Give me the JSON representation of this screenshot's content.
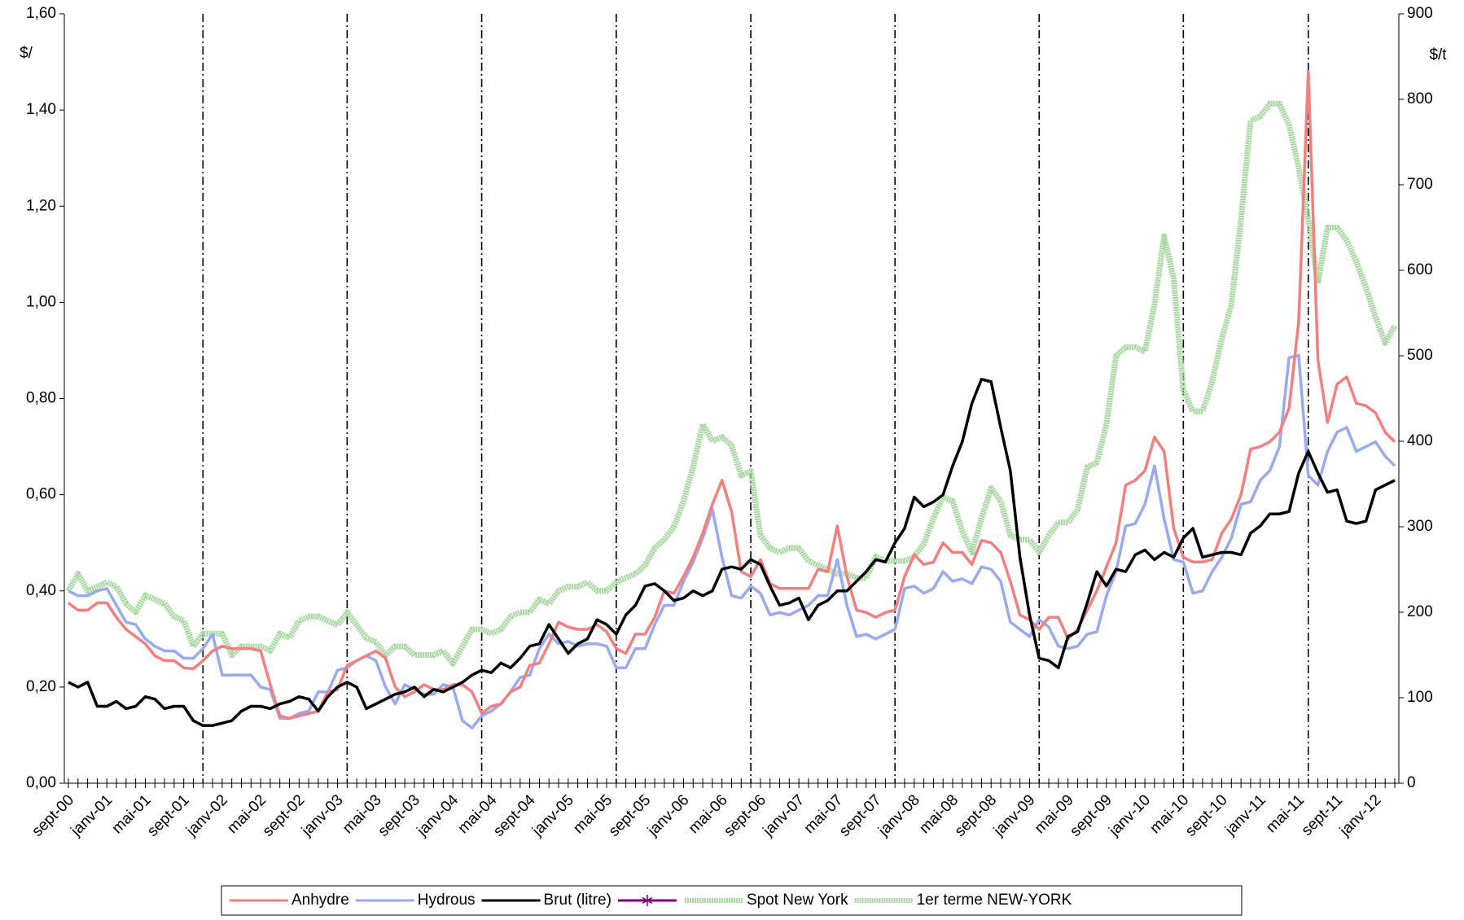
{
  "chart_data": {
    "type": "line",
    "y_label": "$/",
    "y2_label": "$/t",
    "categories": [
      "sept-00",
      null,
      null,
      null,
      "janv-01",
      null,
      null,
      null,
      "mai-01",
      null,
      null,
      null,
      "sept-01",
      null,
      null,
      null,
      "janv-02",
      null,
      null,
      null,
      "mai-02",
      null,
      null,
      null,
      "sept-02",
      null,
      null,
      null,
      "janv-03",
      null,
      null,
      null,
      "mai-03",
      null,
      null,
      null,
      "sept-03",
      null,
      null,
      null,
      "janv-04",
      null,
      null,
      null,
      "mai-04",
      null,
      null,
      null,
      "sept-04",
      null,
      null,
      null,
      "janv-05",
      null,
      null,
      null,
      "mai-05",
      null,
      null,
      null,
      "sept-05",
      null,
      null,
      null,
      "janv-06",
      null,
      null,
      null,
      "mai-06",
      null,
      null,
      null,
      "sept-06",
      null,
      null,
      null,
      "janv-07",
      null,
      null,
      null,
      "mai-07",
      null,
      null,
      null,
      "sept-07",
      null,
      null,
      null,
      "janv-08",
      null,
      null,
      null,
      "mai-08",
      null,
      null,
      null,
      "sept-08",
      null,
      null,
      null,
      "janv-09",
      null,
      null,
      null,
      "mai-09",
      null,
      null,
      null,
      "sept-09",
      null,
      null,
      null,
      "janv-10",
      null,
      null,
      null,
      "mai-10",
      null,
      null,
      null,
      "sept-10",
      null,
      null,
      null,
      "janv-11",
      null,
      null,
      null,
      "mai-11",
      null,
      null,
      null,
      "sept-11",
      null,
      null,
      null,
      "janv-12",
      null,
      null
    ],
    "series": [
      {
        "name": "Anhydre",
        "color": "#f47f7f",
        "axis": "y",
        "values": [
          0.375,
          0.36,
          0.36,
          0.375,
          0.375,
          0.345,
          0.32,
          0.305,
          0.29,
          0.265,
          0.255,
          0.255,
          0.24,
          0.238,
          0.255,
          0.275,
          0.285,
          0.28,
          0.28,
          0.28,
          0.275,
          0.205,
          0.14,
          0.135,
          0.14,
          0.145,
          0.15,
          0.19,
          0.195,
          0.245,
          0.255,
          0.265,
          0.275,
          0.26,
          0.2,
          0.18,
          0.19,
          0.205,
          0.195,
          0.195,
          0.205,
          0.205,
          0.19,
          0.145,
          0.16,
          0.165,
          0.19,
          0.2,
          0.245,
          0.25,
          0.29,
          0.335,
          0.325,
          0.32,
          0.32,
          0.33,
          0.315,
          0.28,
          0.27,
          0.31,
          0.31,
          0.345,
          0.4,
          0.395,
          0.43,
          0.47,
          0.52,
          0.58,
          0.63,
          0.565,
          0.44,
          0.43,
          0.465,
          0.415,
          0.405,
          0.405,
          0.405,
          0.405,
          0.445,
          0.44,
          0.535,
          0.43,
          0.36,
          0.355,
          0.345,
          0.355,
          0.36,
          0.43,
          0.475,
          0.455,
          0.46,
          0.5,
          0.48,
          0.48,
          0.455,
          0.505,
          0.5,
          0.48,
          0.42,
          0.35,
          0.34,
          0.32,
          0.345,
          0.345,
          0.3,
          0.32,
          0.36,
          0.4,
          0.45,
          0.5,
          0.62,
          0.63,
          0.65,
          0.72,
          0.69,
          0.53,
          0.47,
          0.46,
          0.46,
          0.465,
          0.52,
          0.55,
          0.6,
          0.695,
          0.7,
          0.71,
          0.73,
          0.78,
          0.96,
          1.48,
          0.88,
          0.75,
          0.83,
          0.845,
          0.79,
          0.785,
          0.77,
          0.73,
          0.71
        ]
      },
      {
        "name": "Hydrous",
        "color": "#99aaf0",
        "axis": "y",
        "values": [
          0.4,
          0.39,
          0.39,
          0.4,
          0.405,
          0.37,
          0.335,
          0.33,
          0.3,
          0.285,
          0.275,
          0.275,
          0.26,
          0.26,
          0.28,
          0.31,
          0.225,
          0.225,
          0.225,
          0.225,
          0.2,
          0.195,
          0.135,
          0.135,
          0.145,
          0.15,
          0.19,
          0.19,
          0.235,
          0.24,
          0.255,
          0.265,
          0.255,
          0.2,
          0.165,
          0.205,
          0.195,
          0.185,
          0.185,
          0.205,
          0.2,
          0.13,
          0.115,
          0.14,
          0.15,
          0.165,
          0.19,
          0.22,
          0.225,
          0.28,
          0.31,
          0.29,
          0.295,
          0.285,
          0.29,
          0.29,
          0.285,
          0.24,
          0.24,
          0.28,
          0.28,
          0.33,
          0.37,
          0.37,
          0.42,
          0.46,
          0.51,
          0.57,
          0.47,
          0.39,
          0.385,
          0.41,
          0.395,
          0.35,
          0.355,
          0.35,
          0.36,
          0.37,
          0.39,
          0.39,
          0.465,
          0.37,
          0.305,
          0.31,
          0.3,
          0.31,
          0.32,
          0.405,
          0.41,
          0.395,
          0.405,
          0.44,
          0.42,
          0.425,
          0.415,
          0.45,
          0.445,
          0.42,
          0.335,
          0.32,
          0.305,
          0.34,
          0.325,
          0.285,
          0.28,
          0.285,
          0.31,
          0.315,
          0.39,
          0.44,
          0.535,
          0.54,
          0.58,
          0.66,
          0.55,
          0.465,
          0.46,
          0.395,
          0.4,
          0.44,
          0.47,
          0.51,
          0.58,
          0.585,
          0.63,
          0.65,
          0.7,
          0.885,
          0.89,
          0.64,
          0.62,
          0.69,
          0.73,
          0.74,
          0.69,
          0.7,
          0.71,
          0.68,
          0.66
        ]
      },
      {
        "name": "Brut (litre)",
        "color": "#000000",
        "axis": "y",
        "values": [
          0.21,
          0.2,
          0.21,
          0.16,
          0.16,
          0.17,
          0.155,
          0.16,
          0.18,
          0.175,
          0.155,
          0.16,
          0.16,
          0.13,
          0.12,
          0.12,
          0.125,
          0.13,
          0.15,
          0.16,
          0.16,
          0.155,
          0.165,
          0.17,
          0.18,
          0.175,
          0.15,
          0.18,
          0.2,
          0.21,
          0.2,
          0.155,
          0.165,
          0.175,
          0.185,
          0.19,
          0.2,
          0.18,
          0.195,
          0.19,
          0.2,
          0.21,
          0.225,
          0.235,
          0.23,
          0.25,
          0.24,
          0.26,
          0.285,
          0.29,
          0.33,
          0.3,
          0.27,
          0.29,
          0.3,
          0.34,
          0.33,
          0.31,
          0.35,
          0.37,
          0.41,
          0.415,
          0.4,
          0.38,
          0.385,
          0.4,
          0.39,
          0.4,
          0.445,
          0.45,
          0.445,
          0.465,
          0.455,
          0.41,
          0.37,
          0.375,
          0.385,
          0.34,
          0.37,
          0.38,
          0.4,
          0.4,
          0.42,
          0.44,
          0.465,
          0.46,
          0.5,
          0.53,
          0.595,
          0.575,
          0.585,
          0.6,
          0.66,
          0.71,
          0.79,
          0.84,
          0.835,
          0.74,
          0.65,
          0.47,
          0.35,
          0.26,
          0.255,
          0.24,
          0.305,
          0.315,
          0.375,
          0.44,
          0.41,
          0.445,
          0.44,
          0.475,
          0.485,
          0.465,
          0.48,
          0.47,
          0.51,
          0.53,
          0.47,
          0.475,
          0.48,
          0.48,
          0.475,
          0.52,
          0.535,
          0.56,
          0.56,
          0.565,
          0.645,
          0.69,
          0.645,
          0.605,
          0.61,
          0.545,
          0.54,
          0.545,
          0.61,
          0.62,
          0.63
        ]
      },
      {
        "name": "",
        "color": "#800080",
        "axis": "y",
        "marker": "star",
        "values": [
          null,
          null,
          null,
          null,
          null,
          null,
          null,
          null,
          null,
          null,
          null,
          null,
          null,
          null,
          null,
          null,
          null,
          null,
          null,
          null,
          null,
          null,
          null,
          null,
          null,
          null,
          null,
          null,
          null,
          null,
          null,
          null,
          null,
          null,
          null,
          null,
          null,
          null,
          null,
          null,
          null,
          null,
          null,
          null,
          null,
          null,
          null,
          null,
          null,
          null,
          null,
          null,
          null,
          null,
          null,
          null,
          null,
          null,
          null,
          null,
          null,
          null,
          null,
          null,
          null,
          null,
          null,
          null,
          null,
          null,
          null,
          null,
          null,
          null,
          null,
          null,
          null,
          null,
          null,
          null,
          null,
          null,
          null,
          null,
          null,
          null,
          null,
          null,
          null,
          null,
          null,
          null,
          null,
          null,
          null,
          null,
          null,
          null,
          null,
          null,
          null,
          null,
          null,
          null,
          null,
          null,
          null,
          null,
          null,
          null,
          null,
          null,
          null,
          null,
          null,
          null,
          null,
          null,
          null,
          null,
          null,
          null,
          null,
          null,
          null,
          null,
          null,
          null,
          null,
          null,
          null,
          null,
          null,
          null,
          null,
          null,
          null,
          null,
          null
        ]
      },
      {
        "name": "Spot New York",
        "color": "#a9d8a2",
        "axis": "y2",
        "values": [
          225,
          245,
          225,
          230,
          235,
          230,
          210,
          200,
          220,
          215,
          210,
          195,
          190,
          160,
          175,
          175,
          175,
          150,
          160,
          160,
          160,
          155,
          175,
          170,
          190,
          195,
          195,
          190,
          185,
          200,
          185,
          170,
          165,
          150,
          160,
          160,
          150,
          150,
          150,
          155,
          140,
          160,
          180,
          180,
          175,
          180,
          195,
          200,
          200,
          215,
          210,
          225,
          230,
          230,
          235,
          225,
          225,
          235,
          240,
          245,
          255,
          275,
          285,
          300,
          330,
          370,
          420,
          400,
          405,
          395,
          360,
          365,
          290,
          275,
          270,
          275,
          275,
          260,
          255,
          250,
          245,
          245,
          240,
          240,
          265,
          260,
          260,
          260,
          265,
          280,
          310,
          335,
          330,
          295,
          270,
          310,
          345,
          330,
          290,
          285,
          285,
          270,
          290,
          305,
          305,
          320,
          370,
          375,
          420,
          500,
          510,
          510,
          505,
          560,
          640,
          590,
          460,
          435,
          435,
          470,
          520,
          560,
          660,
          775,
          780,
          795,
          795,
          770,
          720,
          660,
          585,
          650,
          650,
          635,
          610,
          580,
          545,
          515,
          535
        ]
      },
      {
        "name": "1er terme NEW-YORK",
        "color": "#a9d8a2",
        "axis": "y2",
        "values": [
          225,
          245,
          225,
          230,
          235,
          230,
          210,
          200,
          220,
          215,
          210,
          195,
          190,
          160,
          175,
          175,
          175,
          150,
          160,
          160,
          160,
          155,
          175,
          170,
          190,
          195,
          195,
          190,
          185,
          200,
          185,
          170,
          165,
          150,
          160,
          160,
          150,
          150,
          150,
          155,
          140,
          160,
          180,
          180,
          175,
          180,
          195,
          200,
          200,
          215,
          210,
          225,
          230,
          230,
          235,
          225,
          225,
          235,
          240,
          245,
          255,
          275,
          285,
          300,
          330,
          370,
          420,
          400,
          405,
          395,
          360,
          365,
          290,
          275,
          270,
          275,
          275,
          260,
          255,
          250,
          245,
          245,
          240,
          240,
          265,
          260,
          260,
          260,
          265,
          280,
          310,
          335,
          330,
          295,
          270,
          310,
          345,
          330,
          290,
          285,
          285,
          270,
          290,
          305,
          305,
          320,
          370,
          375,
          420,
          500,
          510,
          510,
          505,
          560,
          640,
          590,
          460,
          435,
          435,
          470,
          520,
          560,
          660,
          775,
          780,
          795,
          795,
          770,
          720,
          660,
          585,
          650,
          650,
          635,
          610,
          580,
          545,
          515,
          535
        ]
      }
    ],
    "ylim": [
      0,
      1.6
    ],
    "yticks": [
      {
        "value": 0,
        "label": "0,00"
      },
      {
        "value": 0.2,
        "label": "0,20"
      },
      {
        "value": 0.4,
        "label": "0,40"
      },
      {
        "value": 0.6,
        "label": "0,60"
      },
      {
        "value": 0.8,
        "label": "0,80"
      },
      {
        "value": 1,
        "label": "1,00"
      },
      {
        "value": 1.2,
        "label": "1,20"
      },
      {
        "value": 1.4,
        "label": "1,40"
      },
      {
        "value": 1.6,
        "label": "1,60"
      }
    ],
    "y2lim": [
      0,
      900
    ],
    "y2ticks": [
      0,
      100,
      200,
      300,
      400,
      500,
      600,
      700,
      800,
      900
    ],
    "vertical_lines": [
      14,
      29,
      43,
      57,
      71,
      86,
      101,
      116,
      129
    ],
    "grid": false,
    "legend": "bottom"
  }
}
